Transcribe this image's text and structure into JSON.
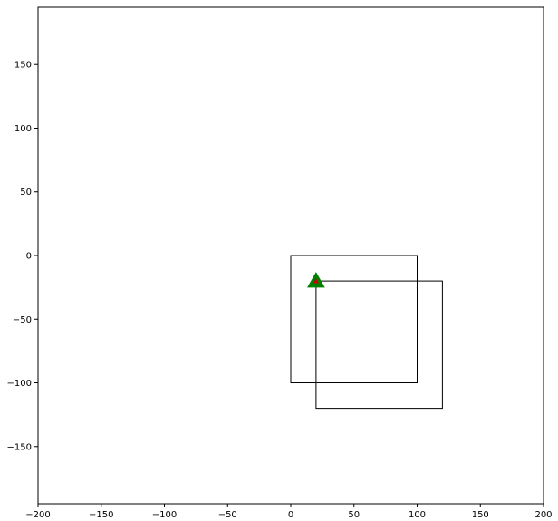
{
  "chart_data": {
    "type": "scatter",
    "title": "",
    "xlabel": "",
    "ylabel": "",
    "xlim": [
      -200,
      200
    ],
    "ylim": [
      -195,
      195
    ],
    "xticks": [
      -200,
      -150,
      -100,
      -50,
      0,
      50,
      100,
      150,
      200
    ],
    "yticks": [
      -150,
      -100,
      -50,
      0,
      50,
      100,
      150
    ],
    "grid": false,
    "rectangles": [
      {
        "x0": 0,
        "y0": -100,
        "x1": 100,
        "y1": 0,
        "edge_color": "#000000"
      },
      {
        "x0": 20,
        "y0": -120,
        "x1": 120,
        "y1": -20,
        "edge_color": "#000000"
      }
    ],
    "points": [
      {
        "x": 20,
        "y": -20,
        "marker": "triangle-up",
        "color": "#008000",
        "inner_color": "#cc0000"
      }
    ]
  }
}
